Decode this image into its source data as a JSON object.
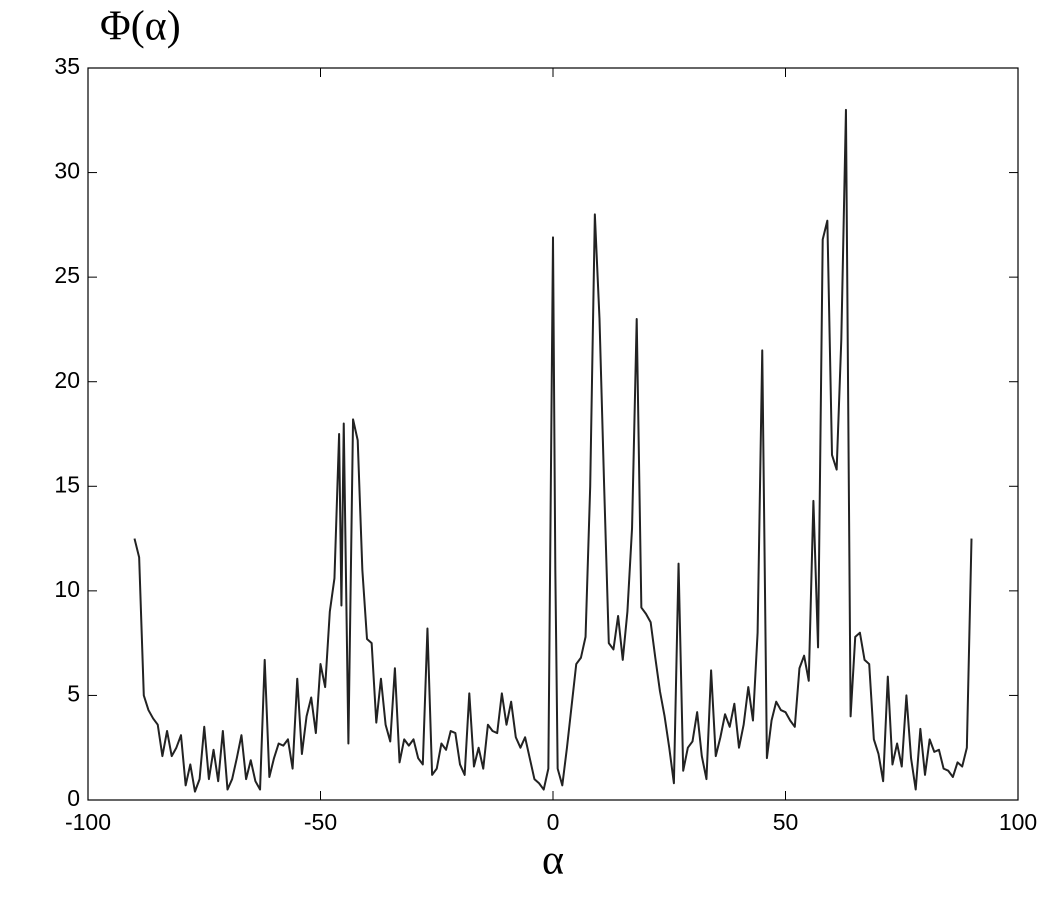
{
  "chart_data": {
    "type": "line",
    "title": "Φ(α)",
    "x_label": "α",
    "x": [
      -90,
      -89,
      -88,
      -87,
      -86,
      -85,
      -84,
      -83,
      -82,
      -81,
      -80,
      -79,
      -78,
      -77,
      -76,
      -75,
      -74,
      -73,
      -72,
      -71,
      -70,
      -69,
      -68,
      -67,
      -66,
      -65,
      -64,
      -63,
      -62,
      -61,
      -60,
      -59,
      -58,
      -57,
      -56,
      -55,
      -54,
      -53,
      -52,
      -51,
      -50,
      -49,
      -48,
      -47,
      -46,
      -45.5,
      -45,
      -44,
      -43,
      -42,
      -41,
      -40,
      -39,
      -38,
      -37,
      -36,
      -35,
      -34,
      -33,
      -32,
      -31,
      -30,
      -29,
      -28,
      -27,
      -26,
      -25,
      -24,
      -23,
      -22,
      -21,
      -20,
      -19,
      -18,
      -17,
      -16,
      -15,
      -14,
      -13,
      -12,
      -11,
      -10,
      -9,
      -8,
      -7,
      -6,
      -5,
      -4,
      -3,
      -2,
      -1,
      0,
      0.5,
      1,
      2,
      3,
      4,
      5,
      6,
      7,
      8,
      9,
      10,
      11,
      12,
      13,
      14,
      15,
      16,
      17,
      18,
      19,
      20,
      21,
      22,
      23,
      24,
      25,
      26,
      27,
      28,
      29,
      30,
      31,
      32,
      33,
      34,
      35,
      36,
      37,
      38,
      39,
      40,
      41,
      42,
      43,
      44,
      45,
      46,
      47,
      48,
      49,
      50,
      51,
      52,
      53,
      54,
      55,
      56,
      57,
      58,
      59,
      60,
      61,
      62,
      63,
      64,
      65,
      66,
      67,
      68,
      69,
      70,
      71,
      72,
      73,
      74,
      75,
      76,
      77,
      78,
      79,
      80,
      81,
      82,
      83,
      84,
      85,
      86,
      87,
      88,
      89,
      90
    ],
    "values": [
      12.5,
      11.6,
      5,
      4.3,
      3.9,
      3.6,
      2.1,
      3.3,
      2.1,
      2.5,
      3.1,
      0.7,
      1.7,
      0.4,
      1.0,
      3.5,
      1.0,
      2.4,
      0.9,
      3.3,
      0.5,
      1.0,
      2.0,
      3.1,
      1.0,
      1.9,
      0.9,
      0.5,
      6.7,
      1.1,
      2.0,
      2.7,
      2.6,
      2.9,
      1.5,
      5.8,
      2.2,
      4.0,
      4.9,
      3.2,
      6.5,
      5.4,
      9.0,
      10.6,
      17.5,
      9.3,
      18.0,
      2.7,
      18.2,
      17.2,
      11.0,
      7.7,
      7.5,
      3.7,
      5.8,
      3.6,
      2.8,
      6.3,
      1.8,
      2.9,
      2.6,
      2.9,
      2.0,
      1.7,
      8.2,
      1.2,
      1.5,
      2.7,
      2.4,
      3.3,
      3.2,
      1.7,
      1.2,
      5.1,
      1.6,
      2.5,
      1.5,
      3.6,
      3.3,
      3.2,
      5.1,
      3.6,
      4.7,
      3.0,
      2.5,
      3.0,
      2.0,
      1.0,
      0.8,
      0.5,
      1.5,
      26.9,
      11,
      1.5,
      0.7,
      2.5,
      4.5,
      6.5,
      6.8,
      7.8,
      15,
      28,
      23,
      15,
      7.5,
      7.2,
      8.8,
      6.7,
      9.0,
      13,
      23,
      9.2,
      8.9,
      8.5,
      6.8,
      5.2,
      4.0,
      2.5,
      0.8,
      11.3,
      1.4,
      2.5,
      2.8,
      4.2,
      2.1,
      1.0,
      6.2,
      2.1,
      3.0,
      4.1,
      3.5,
      4.6,
      2.5,
      3.6,
      5.4,
      3.8,
      8,
      21.5,
      2.0,
      3.8,
      4.7,
      4.3,
      4.2,
      3.8,
      3.5,
      6.3,
      6.9,
      5.7,
      14.3,
      7.3,
      26.8,
      27.7,
      16.5,
      15.8,
      22,
      33,
      4.0,
      7.8,
      8.0,
      6.7,
      6.5,
      2.9,
      2.2,
      0.9,
      5.9,
      1.7,
      2.7,
      1.6,
      5.0,
      2.0,
      0.5,
      3.4,
      1.2,
      2.9,
      2.3,
      2.4,
      1.5,
      1.4,
      1.1,
      1.8,
      1.6,
      2.5,
      12.5
    ],
    "color": "#222222",
    "xlim": [
      -100,
      100
    ],
    "xticks": [
      -100,
      -50,
      0,
      50,
      100
    ],
    "ylim": [
      0,
      35
    ],
    "yticks": [
      0,
      5,
      10,
      15,
      20,
      25,
      30,
      35
    ]
  }
}
